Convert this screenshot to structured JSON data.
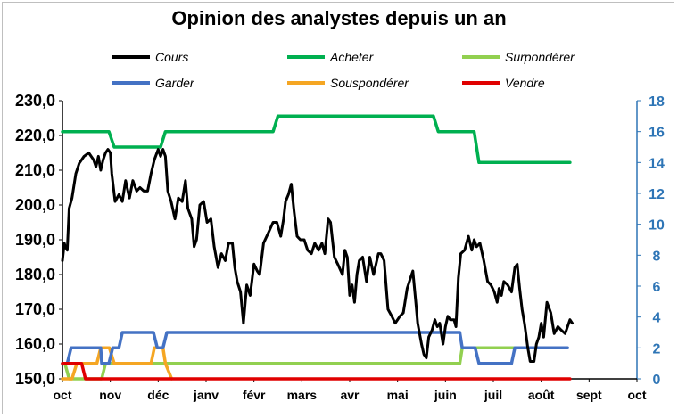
{
  "chart_data": {
    "type": "line",
    "title": "Opinion des analystes depuis un an",
    "x_tick_labels": [
      "oct",
      "nov",
      "déc",
      "janv",
      "févr",
      "mars",
      "avr",
      "mai",
      "juin",
      "juil",
      "août",
      "sept",
      "oct"
    ],
    "y_left": {
      "min": 150,
      "max": 230,
      "ticks": [
        "150,0",
        "160,0",
        "170,0",
        "180,0",
        "190,0",
        "200,0",
        "210,0",
        "220,0",
        "230,0"
      ]
    },
    "y_right": {
      "min": 0,
      "max": 18,
      "ticks": [
        "0",
        "2",
        "4",
        "6",
        "8",
        "10",
        "12",
        "14",
        "16",
        "18"
      ]
    },
    "grid": "none",
    "legend_placement": "top",
    "series": [
      {
        "name": "Cours",
        "axis": "left",
        "color": "#000000",
        "points": [
          [
            0,
            184
          ],
          [
            0.04,
            189
          ],
          [
            0.06,
            188
          ],
          [
            0.1,
            187
          ],
          [
            0.14,
            199
          ],
          [
            0.2,
            202
          ],
          [
            0.28,
            209
          ],
          [
            0.35,
            212
          ],
          [
            0.45,
            214
          ],
          [
            0.55,
            215
          ],
          [
            0.65,
            213
          ],
          [
            0.7,
            211
          ],
          [
            0.75,
            214
          ],
          [
            0.8,
            210
          ],
          [
            0.85,
            213
          ],
          [
            0.9,
            215
          ],
          [
            0.95,
            216
          ],
          [
            1.0,
            215
          ],
          [
            1.03,
            209
          ],
          [
            1.1,
            201
          ],
          [
            1.18,
            203
          ],
          [
            1.25,
            201
          ],
          [
            1.32,
            207
          ],
          [
            1.4,
            202
          ],
          [
            1.47,
            207
          ],
          [
            1.55,
            204
          ],
          [
            1.62,
            205
          ],
          [
            1.7,
            204
          ],
          [
            1.78,
            204
          ],
          [
            1.85,
            209
          ],
          [
            1.92,
            213
          ],
          [
            2.0,
            216
          ],
          [
            2.05,
            214
          ],
          [
            2.1,
            216
          ],
          [
            2.15,
            214
          ],
          [
            2.2,
            204
          ],
          [
            2.27,
            201
          ],
          [
            2.35,
            196
          ],
          [
            2.42,
            202
          ],
          [
            2.5,
            201
          ],
          [
            2.57,
            207
          ],
          [
            2.62,
            199
          ],
          [
            2.7,
            196
          ],
          [
            2.75,
            188
          ],
          [
            2.8,
            190
          ],
          [
            2.87,
            200
          ],
          [
            2.95,
            201
          ],
          [
            3.02,
            195
          ],
          [
            3.1,
            196
          ],
          [
            3.17,
            188
          ],
          [
            3.25,
            182
          ],
          [
            3.32,
            186
          ],
          [
            3.4,
            184
          ],
          [
            3.47,
            189
          ],
          [
            3.55,
            189
          ],
          [
            3.6,
            182
          ],
          [
            3.65,
            178
          ],
          [
            3.72,
            175
          ],
          [
            3.78,
            166
          ],
          [
            3.85,
            177
          ],
          [
            3.92,
            174
          ],
          [
            4.0,
            183
          ],
          [
            4.07,
            181
          ],
          [
            4.12,
            180
          ],
          [
            4.2,
            189
          ],
          [
            4.3,
            192
          ],
          [
            4.4,
            195
          ],
          [
            4.48,
            195
          ],
          [
            4.56,
            191
          ],
          [
            4.62,
            196
          ],
          [
            4.66,
            201
          ],
          [
            4.72,
            203
          ],
          [
            4.78,
            206
          ],
          [
            4.84,
            198
          ],
          [
            4.9,
            191
          ],
          [
            4.97,
            190
          ],
          [
            5.05,
            190
          ],
          [
            5.12,
            187
          ],
          [
            5.2,
            186
          ],
          [
            5.27,
            189
          ],
          [
            5.35,
            187
          ],
          [
            5.42,
            189
          ],
          [
            5.48,
            186
          ],
          [
            5.55,
            196
          ],
          [
            5.6,
            195
          ],
          [
            5.68,
            185
          ],
          [
            5.75,
            183
          ],
          [
            5.85,
            180
          ],
          [
            5.9,
            187
          ],
          [
            5.95,
            185
          ],
          [
            6.0,
            174
          ],
          [
            6.05,
            177
          ],
          [
            6.1,
            172
          ],
          [
            6.15,
            180
          ],
          [
            6.2,
            184
          ],
          [
            6.27,
            185
          ],
          [
            6.35,
            178
          ],
          [
            6.42,
            185
          ],
          [
            6.5,
            180
          ],
          [
            6.6,
            186
          ],
          [
            6.65,
            186
          ],
          [
            6.72,
            184
          ],
          [
            6.8,
            170
          ],
          [
            6.88,
            168
          ],
          [
            6.95,
            166
          ],
          [
            7.05,
            168
          ],
          [
            7.12,
            169
          ],
          [
            7.2,
            176
          ],
          [
            7.27,
            179
          ],
          [
            7.32,
            181
          ],
          [
            7.38,
            172
          ],
          [
            7.42,
            166
          ],
          [
            7.5,
            160
          ],
          [
            7.55,
            157
          ],
          [
            7.6,
            156
          ],
          [
            7.65,
            162
          ],
          [
            7.72,
            164
          ],
          [
            7.78,
            167
          ],
          [
            7.83,
            165
          ],
          [
            7.88,
            166
          ],
          [
            7.95,
            160
          ],
          [
            8.0,
            165
          ],
          [
            8.05,
            168
          ],
          [
            8.1,
            167
          ],
          [
            8.18,
            167
          ],
          [
            8.22,
            165
          ],
          [
            8.27,
            179
          ],
          [
            8.32,
            186
          ],
          [
            8.4,
            187
          ],
          [
            8.48,
            191
          ],
          [
            8.55,
            187
          ],
          [
            8.6,
            190
          ],
          [
            8.65,
            188
          ],
          [
            8.72,
            189
          ],
          [
            8.8,
            184
          ],
          [
            8.88,
            178
          ],
          [
            8.95,
            177
          ],
          [
            9.02,
            175
          ],
          [
            9.08,
            172
          ],
          [
            9.12,
            176
          ],
          [
            9.17,
            174
          ],
          [
            9.22,
            178
          ],
          [
            9.3,
            177
          ],
          [
            9.38,
            175
          ],
          [
            9.45,
            182
          ],
          [
            9.5,
            183
          ],
          [
            9.55,
            176
          ],
          [
            9.6,
            170
          ],
          [
            9.65,
            166
          ],
          [
            9.72,
            159
          ],
          [
            9.77,
            155
          ],
          [
            9.85,
            155
          ],
          [
            9.9,
            160
          ],
          [
            9.95,
            162
          ],
          [
            10.0,
            166
          ],
          [
            10.05,
            162
          ],
          [
            10.12,
            172
          ],
          [
            10.2,
            169
          ],
          [
            10.27,
            163
          ],
          [
            10.35,
            165
          ],
          [
            10.42,
            164
          ],
          [
            10.5,
            163
          ],
          [
            10.55,
            165
          ],
          [
            10.6,
            167
          ],
          [
            10.65,
            166
          ]
        ]
      },
      {
        "name": "Acheter",
        "axis": "right",
        "color": "#00b050",
        "points": [
          [
            0,
            16
          ],
          [
            0.97,
            16
          ],
          [
            1.08,
            15
          ],
          [
            2.05,
            15
          ],
          [
            2.15,
            16
          ],
          [
            4.4,
            16
          ],
          [
            4.5,
            17
          ],
          [
            7.75,
            17
          ],
          [
            7.85,
            16
          ],
          [
            8.6,
            16
          ],
          [
            8.7,
            14
          ],
          [
            10.6,
            14
          ]
        ]
      },
      {
        "name": "Surpondérer",
        "axis": "right",
        "color": "#92d050",
        "points": [
          [
            0,
            1
          ],
          [
            0.05,
            1
          ],
          [
            0.14,
            0
          ],
          [
            0.82,
            0
          ],
          [
            0.9,
            1
          ],
          [
            8.3,
            1
          ],
          [
            8.35,
            2
          ],
          [
            9.45,
            2
          ]
        ]
      },
      {
        "name": "Garder",
        "axis": "right",
        "color": "#4472c4",
        "points": [
          [
            0,
            1
          ],
          [
            0.1,
            1
          ],
          [
            0.18,
            2
          ],
          [
            0.8,
            2
          ],
          [
            0.82,
            1
          ],
          [
            0.97,
            1
          ],
          [
            1.05,
            2
          ],
          [
            1.18,
            2
          ],
          [
            1.25,
            3
          ],
          [
            1.9,
            3
          ],
          [
            1.98,
            2
          ],
          [
            2.1,
            2
          ],
          [
            2.18,
            3
          ],
          [
            8.3,
            3
          ],
          [
            8.35,
            2
          ],
          [
            8.62,
            2
          ],
          [
            8.7,
            1
          ],
          [
            9.38,
            1
          ],
          [
            9.45,
            2
          ],
          [
            10.55,
            2
          ]
        ]
      },
      {
        "name": "Souspondérer",
        "axis": "right",
        "color": "#f5a623",
        "points": [
          [
            0,
            0
          ],
          [
            0.2,
            0
          ],
          [
            0.3,
            1
          ],
          [
            0.72,
            1
          ],
          [
            0.8,
            2
          ],
          [
            0.98,
            2
          ],
          [
            1.08,
            1
          ],
          [
            1.85,
            1
          ],
          [
            1.92,
            2
          ],
          [
            2.1,
            2
          ],
          [
            2.15,
            1
          ],
          [
            2.28,
            0
          ]
        ]
      },
      {
        "name": "Vendre",
        "axis": "right",
        "color": "#e00000",
        "points": [
          [
            0,
            1
          ],
          [
            0.4,
            1
          ],
          [
            0.48,
            0
          ],
          [
            10.6,
            0
          ]
        ]
      }
    ]
  }
}
